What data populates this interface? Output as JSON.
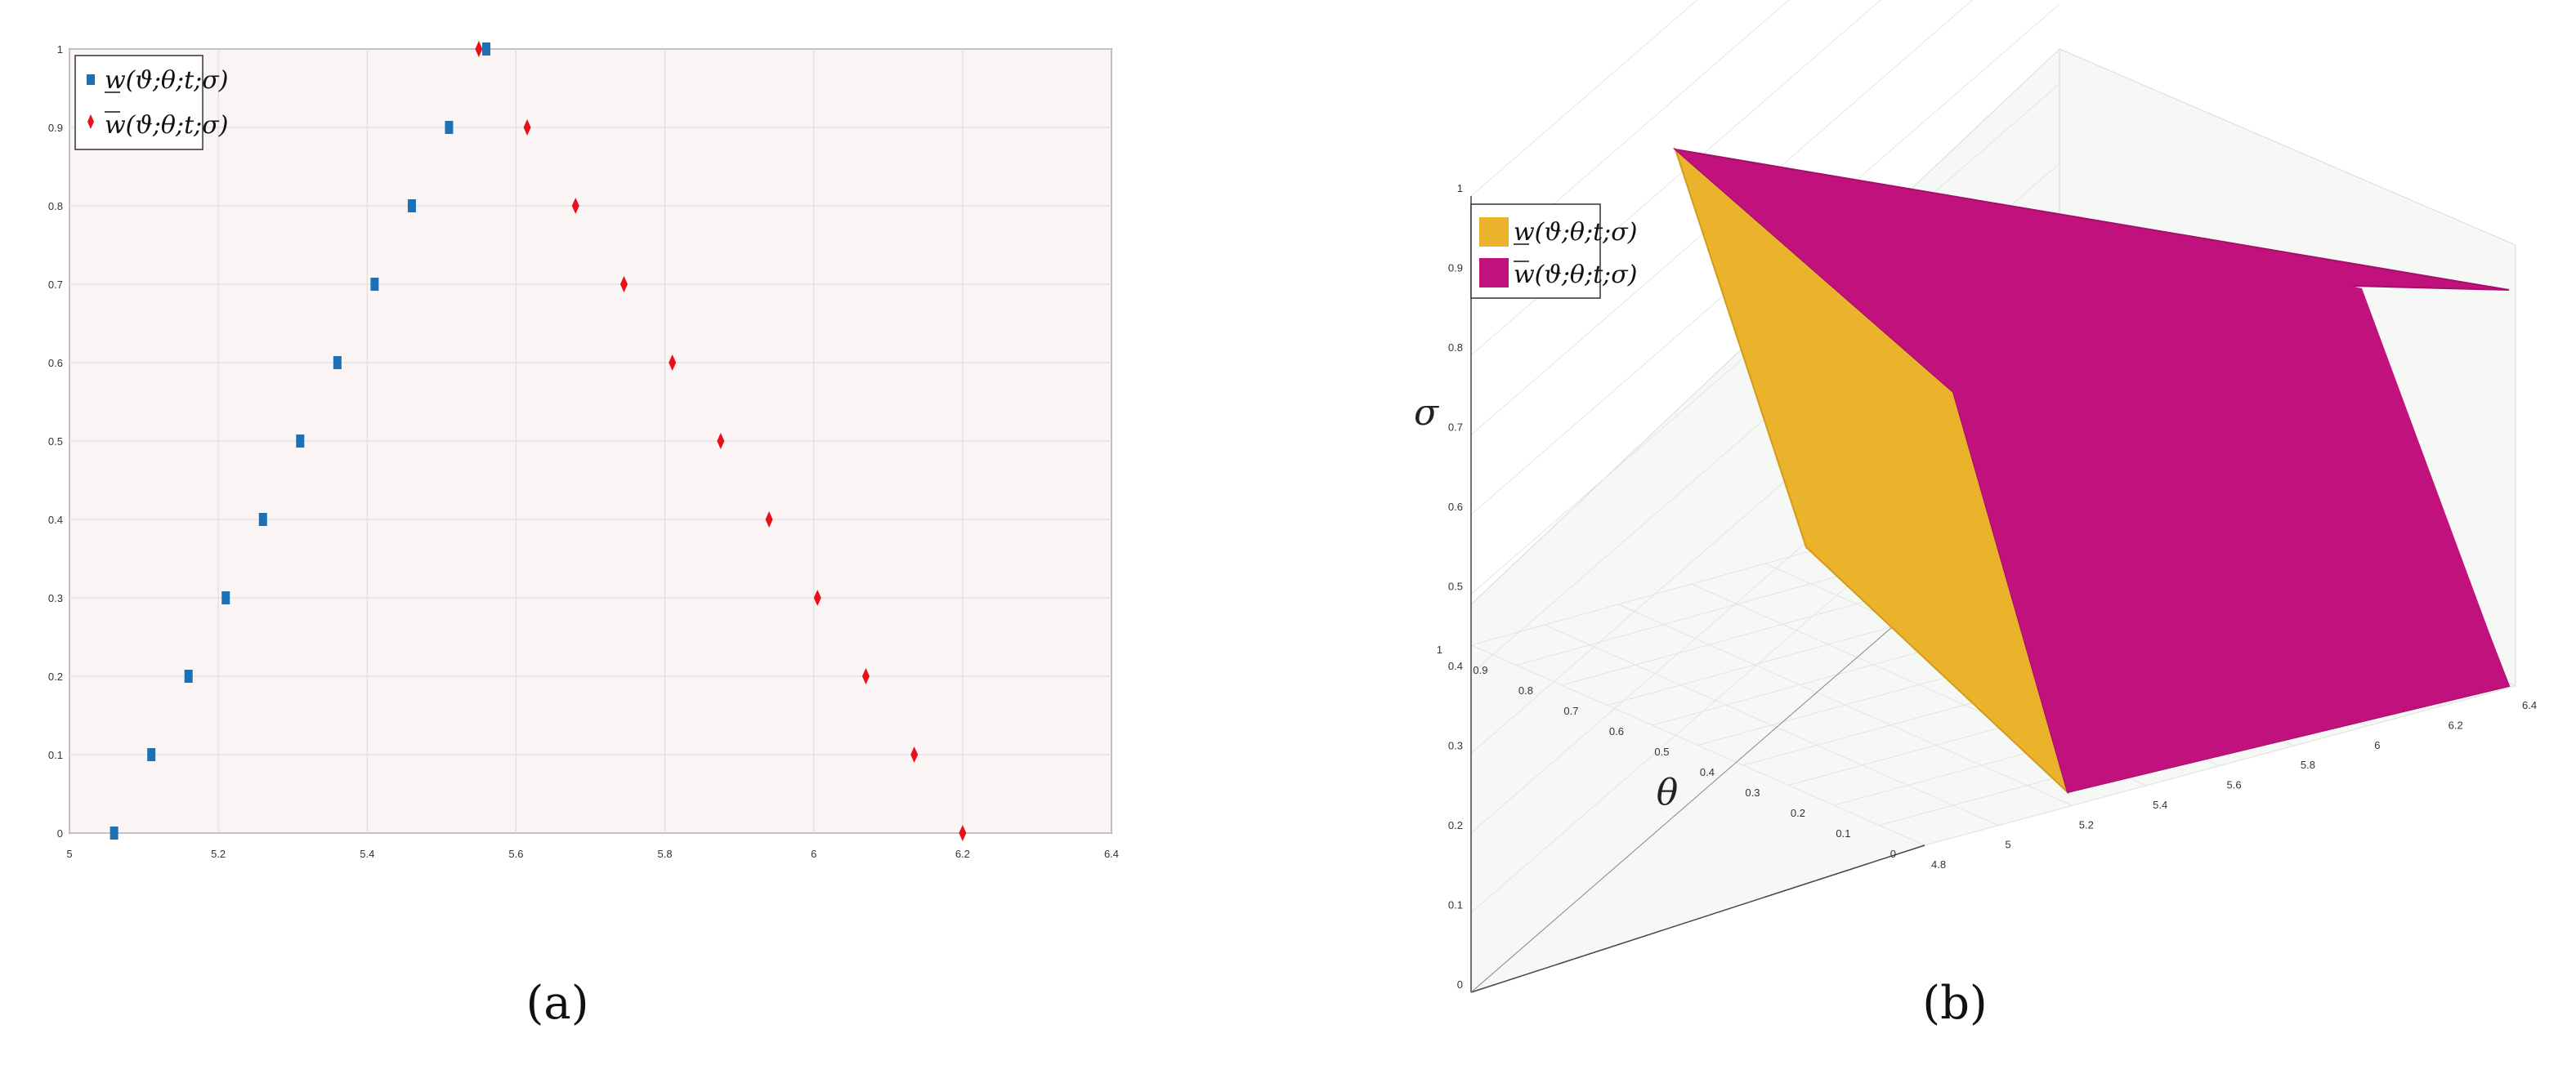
{
  "chart_data": [
    {
      "type": "scatter",
      "caption": "(a)",
      "xlim": [
        5,
        6.4
      ],
      "ylim": [
        0,
        1
      ],
      "x_ticks": [
        "5",
        "5.2",
        "5.4",
        "5.6",
        "5.8",
        "6",
        "6.2",
        "6.4"
      ],
      "y_ticks": [
        "0",
        "0.1",
        "0.2",
        "0.3",
        "0.4",
        "0.5",
        "0.6",
        "0.7",
        "0.8",
        "0.9",
        "1"
      ],
      "grid": true,
      "legend_position": "top-left",
      "series": [
        {
          "name": "w(ϑ;θ;t;σ)",
          "underline": true,
          "marker": "square",
          "color": "#1f6fb4",
          "x": [
            5.06,
            5.11,
            5.16,
            5.21,
            5.26,
            5.31,
            5.36,
            5.41,
            5.46,
            5.51,
            5.56
          ],
          "y": [
            0,
            0.1,
            0.2,
            0.3,
            0.4,
            0.5,
            0.6,
            0.7,
            0.8,
            0.9,
            1
          ]
        },
        {
          "name": "w(ϑ;θ;t;σ)",
          "overline": true,
          "marker": "diamond",
          "color": "#e8111b",
          "x": [
            6.2,
            6.135,
            6.07,
            6.005,
            5.94,
            5.875,
            5.81,
            5.745,
            5.68,
            5.615,
            5.55
          ],
          "y": [
            0,
            0.1,
            0.2,
            0.3,
            0.4,
            0.5,
            0.6,
            0.7,
            0.8,
            0.9,
            1
          ]
        }
      ]
    },
    {
      "type": "surface",
      "caption": "(b)",
      "xlabel": "θ",
      "zlabel": "σ",
      "theta_axis_ticks": [
        "0",
        "0.1",
        "0.2",
        "0.3",
        "0.4",
        "0.5",
        "0.6",
        "0.7",
        "0.8",
        "0.9",
        "1"
      ],
      "value_axis_ticks": [
        "4.8",
        "5",
        "5.2",
        "5.4",
        "5.6",
        "5.8",
        "6",
        "6.2",
        "6.4"
      ],
      "sigma_axis_ticks": [
        "0",
        "0.1",
        "0.2",
        "0.3",
        "0.4",
        "0.5",
        "0.6",
        "0.7",
        "0.8",
        "0.9",
        "1"
      ],
      "grid": true,
      "legend_position": "top-left",
      "series": [
        {
          "name": "w(ϑ;θ;t;σ)",
          "underline": true,
          "color": "#ebb22c"
        },
        {
          "name": "w(ϑ;θ;t;σ)",
          "overline": true,
          "color": "#c0117d"
        }
      ]
    }
  ]
}
